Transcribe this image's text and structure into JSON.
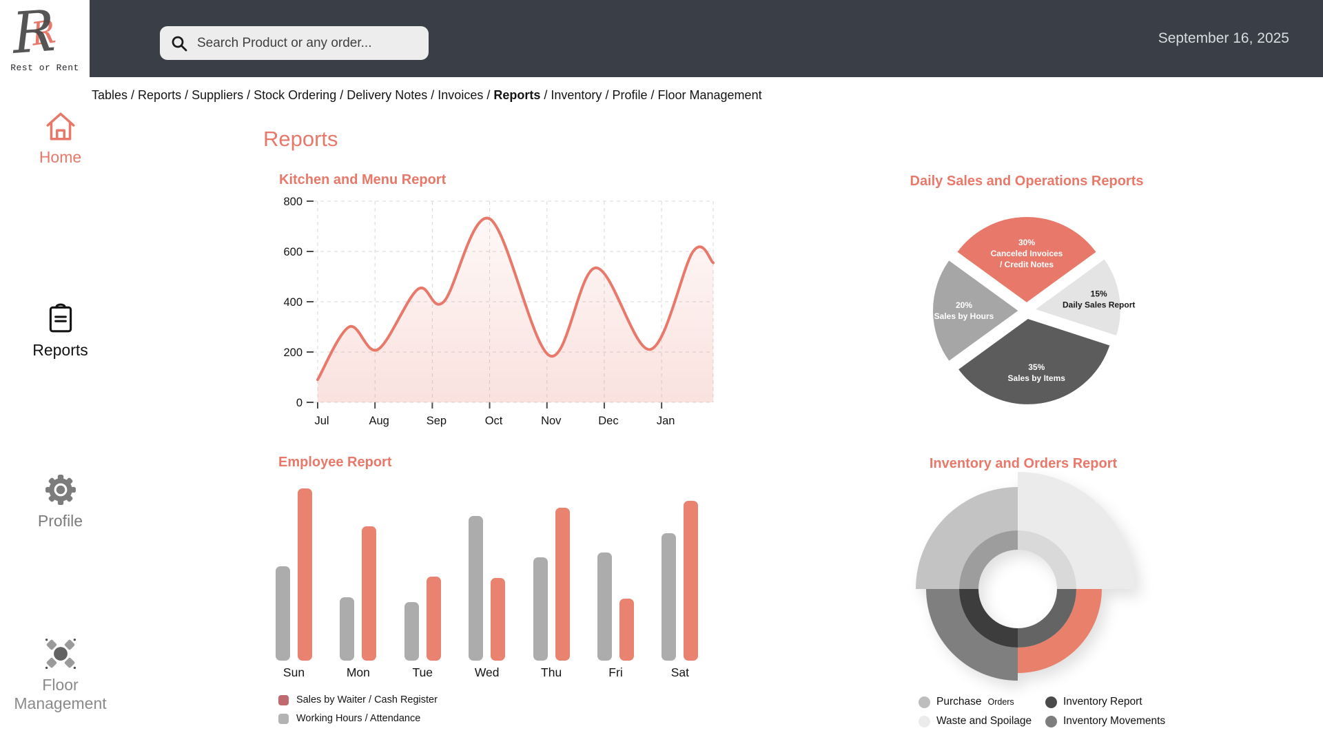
{
  "header": {
    "logo_title": "Rest or Rent",
    "search_placeholder": "Search Product or any order...",
    "date": "September 16, 2025"
  },
  "breadcrumb": {
    "items": [
      "Tables",
      "Reports",
      "Suppliers",
      "Stock Ordering",
      "Delivery Notes",
      "Invoices",
      "Reports",
      "Inventory",
      "Profile",
      "Floor Management"
    ],
    "active_index": 6,
    "separator": " / "
  },
  "sidebar": {
    "items": [
      {
        "label": "Home",
        "icon": "home-icon",
        "active": true
      },
      {
        "label": "Reports",
        "icon": "reports-icon",
        "active": false
      },
      {
        "label": "Profile",
        "icon": "gear-icon",
        "active": false
      },
      {
        "label": "Floor Management",
        "icon": "floor-management-icon",
        "active": false
      }
    ]
  },
  "page": {
    "title": "Reports"
  },
  "colors": {
    "accent": "#E8796A",
    "header_bg": "#3A3F47",
    "grid_line": "#D7D7D7",
    "tick": "#4a4a4a"
  },
  "chart_data": [
    {
      "id": "kitchen_menu",
      "type": "area",
      "title": "Kitchen and Menu Report",
      "x_tick_labels": [
        "Jul",
        "Aug",
        "Sep",
        "Oct",
        "Nov",
        "Dec",
        "Jan"
      ],
      "y_ticks": [
        0,
        200,
        400,
        600,
        800
      ],
      "ylim": [
        0,
        800
      ],
      "x_range_months": [
        0,
        6.9
      ],
      "points_month_value": [
        [
          0,
          90
        ],
        [
          0.55,
          300
        ],
        [
          1.05,
          210
        ],
        [
          1.75,
          450
        ],
        [
          2.2,
          400
        ],
        [
          3,
          730
        ],
        [
          4.05,
          185
        ],
        [
          4.85,
          535
        ],
        [
          5.8,
          210
        ],
        [
          6.55,
          600
        ],
        [
          6.9,
          555
        ]
      ],
      "line_color": "#E8796A",
      "fill_color_rgb": "232,121,106",
      "grid": "dashed"
    },
    {
      "id": "daily_sales_operations",
      "type": "pie",
      "title": "Daily Sales and Operations Reports",
      "start_angle_deg": 306,
      "slices": [
        {
          "pct": 30,
          "label": "Canceled Invoices / Credit Notes",
          "label_lines": [
            "Canceled Invoices",
            "/ Credit Notes"
          ],
          "color": "#E8796A",
          "text_color": "#FFFFFF",
          "label_radius": 72
        },
        {
          "pct": 15,
          "label": "Daily Sales Report",
          "label_lines": [
            "Daily Sales Report"
          ],
          "color": "#E4E4E4",
          "text_color": "#1A1A1A",
          "label_radius": 95
        },
        {
          "pct": 35,
          "label": "Sales by Items",
          "label_lines": [
            "Sales by Items"
          ],
          "color": "#5C5C5C",
          "text_color": "#FFFFFF",
          "label_radius": 80
        },
        {
          "pct": 20,
          "label": "Sales by Hours",
          "label_lines": [
            "Sales by Hours"
          ],
          "color": "#A6A6A6",
          "text_color": "#FFFFFF",
          "label_radius": 80
        }
      ]
    },
    {
      "id": "employee",
      "type": "bar",
      "title": "Employee Report",
      "categories": [
        "Sun",
        "Mon",
        "Tue",
        "Wed",
        "Thu",
        "Fri",
        "Sat"
      ],
      "y_max": 100,
      "series": [
        {
          "name": "Working Hours / Attendance",
          "color": "#ACACAC",
          "legend_color": "#B3B3B3",
          "values": [
            55,
            37,
            34,
            84,
            60,
            63,
            74
          ]
        },
        {
          "name": "Sales by Waiter / Cash Register",
          "color": "#E9836F",
          "legend_color": "#BE6A6F",
          "values": [
            100,
            78,
            49,
            48,
            89,
            36,
            93
          ]
        }
      ],
      "legend_order": [
        1,
        0
      ]
    },
    {
      "id": "inventory_orders",
      "type": "donut",
      "title": "Inventory and Orders Report",
      "hole_radius": 57,
      "mid_radius": 85,
      "quadrants": [
        {
          "position": "top-right",
          "start_deg": 0,
          "end_deg": 90,
          "outer_color": "#EBEBEB",
          "inner_color": "#D9D9D9",
          "outer_radius": 170
        },
        {
          "position": "bottom-right",
          "start_deg": 90,
          "end_deg": 180,
          "outer_color": "#E8806C",
          "inner_color": "#646464",
          "outer_radius": 122
        },
        {
          "position": "bottom-left",
          "start_deg": 180,
          "end_deg": 270,
          "outer_color": "#7F7F7F",
          "inner_color": "#3D3D3D",
          "outer_radius": 133
        },
        {
          "position": "top-left",
          "start_deg": 270,
          "end_deg": 360,
          "outer_color": "#C3C3C3",
          "inner_color": "#9D9D9D",
          "outer_radius": 148
        }
      ],
      "legend": [
        {
          "label": "Purchase",
          "label_suffix": "Orders",
          "color": "#BDBDBD",
          "column": 0,
          "row": 0
        },
        {
          "label": "Waste and Spoilage",
          "label_suffix": "",
          "color": "#EBEBEB",
          "column": 0,
          "row": 1
        },
        {
          "label": "Inventory Report",
          "label_suffix": "",
          "color": "#4A4A4A",
          "column": 1,
          "row": 0
        },
        {
          "label": "Inventory Movements",
          "label_suffix": "",
          "color": "#7D7D7D",
          "column": 1,
          "row": 1
        }
      ]
    }
  ]
}
